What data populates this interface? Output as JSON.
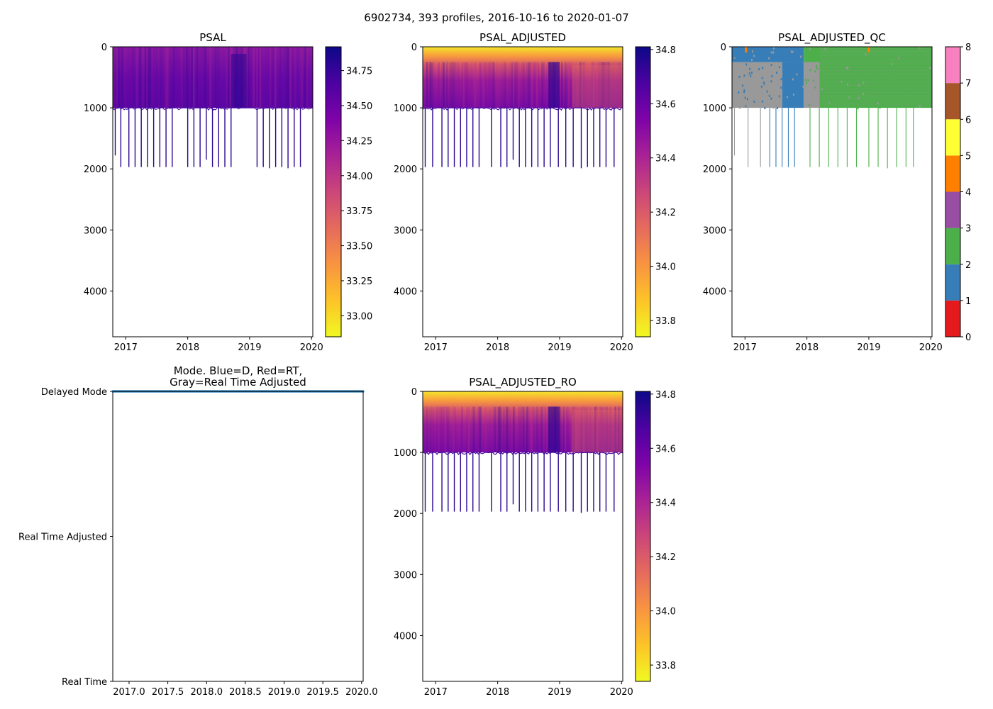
{
  "suptitle": "6902734, 393 profiles, 2016-10-16 to 2020-01-07",
  "chart_data": [
    {
      "id": "psal",
      "type": "heatmap",
      "title": "PSAL",
      "xlabel": "",
      "ylabel": "",
      "xlim": [
        2016.79,
        2020.02
      ],
      "ylim": [
        4750,
        0
      ],
      "x_ticks": [
        {
          "value": 2017,
          "label": "2017"
        },
        {
          "value": 2018,
          "label": "2018"
        },
        {
          "value": 2019,
          "label": "2019"
        },
        {
          "value": 2020,
          "label": "2020"
        }
      ],
      "y_ticks": [
        {
          "value": 0,
          "label": "0"
        },
        {
          "value": 1000,
          "label": "1000"
        },
        {
          "value": 2000,
          "label": "2000"
        },
        {
          "value": 3000,
          "label": "3000"
        },
        {
          "value": 4000,
          "label": "4000"
        }
      ],
      "colormap": "plasma_r",
      "colorbar": {
        "range": [
          32.85,
          34.92
        ],
        "ticks": [
          {
            "value": 33.0,
            "label": "33.00"
          },
          {
            "value": 33.25,
            "label": "33.25"
          },
          {
            "value": 33.5,
            "label": "33.50"
          },
          {
            "value": 33.75,
            "label": "33.75"
          },
          {
            "value": 34.0,
            "label": "34.00"
          },
          {
            "value": 34.25,
            "label": "34.25"
          },
          {
            "value": 34.5,
            "label": "34.50"
          },
          {
            "value": 34.75,
            "label": "34.75"
          }
        ]
      },
      "typical_profile_depth": 1000,
      "deep_profiles": [
        {
          "x": 2016.83,
          "depth": 1780
        },
        {
          "x": 2016.92,
          "depth": 1970
        },
        {
          "x": 2017.05,
          "depth": 1970
        },
        {
          "x": 2017.15,
          "depth": 1970
        },
        {
          "x": 2017.25,
          "depth": 1970
        },
        {
          "x": 2017.35,
          "depth": 1970
        },
        {
          "x": 2017.45,
          "depth": 1970
        },
        {
          "x": 2017.55,
          "depth": 1970
        },
        {
          "x": 2017.65,
          "depth": 1970
        },
        {
          "x": 2017.75,
          "depth": 1970
        },
        {
          "x": 2018.0,
          "depth": 1970
        },
        {
          "x": 2018.1,
          "depth": 1970
        },
        {
          "x": 2018.2,
          "depth": 1970
        },
        {
          "x": 2018.3,
          "depth": 1850
        },
        {
          "x": 2018.4,
          "depth": 1970
        },
        {
          "x": 2018.5,
          "depth": 1970
        },
        {
          "x": 2018.6,
          "depth": 1970
        },
        {
          "x": 2018.7,
          "depth": 1970
        },
        {
          "x": 2019.12,
          "depth": 1970
        },
        {
          "x": 2019.22,
          "depth": 1970
        },
        {
          "x": 2019.32,
          "depth": 1990
        },
        {
          "x": 2019.42,
          "depth": 1970
        },
        {
          "x": 2019.52,
          "depth": 1970
        },
        {
          "x": 2019.62,
          "depth": 1990
        },
        {
          "x": 2019.72,
          "depth": 1970
        },
        {
          "x": 2019.82,
          "depth": 1970
        }
      ]
    },
    {
      "id": "psal_adj",
      "type": "heatmap",
      "title": "PSAL_ADJUSTED",
      "xlabel": "",
      "ylabel": "",
      "xlim": [
        2016.79,
        2020.02
      ],
      "ylim": [
        4750,
        0
      ],
      "x_ticks": [
        {
          "value": 2017,
          "label": "2017"
        },
        {
          "value": 2018,
          "label": "2018"
        },
        {
          "value": 2019,
          "label": "2019"
        },
        {
          "value": 2020,
          "label": "2020"
        }
      ],
      "y_ticks": [
        {
          "value": 0,
          "label": "0"
        },
        {
          "value": 1000,
          "label": "1000"
        },
        {
          "value": 2000,
          "label": "2000"
        },
        {
          "value": 3000,
          "label": "3000"
        },
        {
          "value": 4000,
          "label": "4000"
        }
      ],
      "colormap": "plasma_r",
      "colorbar": {
        "range": [
          33.74,
          34.81
        ],
        "ticks": [
          {
            "value": 33.8,
            "label": "33.8"
          },
          {
            "value": 34.0,
            "label": "34.0"
          },
          {
            "value": 34.2,
            "label": "34.2"
          },
          {
            "value": 34.4,
            "label": "34.4"
          },
          {
            "value": 34.6,
            "label": "34.6"
          },
          {
            "value": 34.8,
            "label": "34.8"
          }
        ]
      },
      "typical_profile_depth": 1000,
      "deep_profiles": [
        {
          "x": 2016.83,
          "depth": 1970
        },
        {
          "x": 2016.95,
          "depth": 1970
        },
        {
          "x": 2017.1,
          "depth": 1970
        },
        {
          "x": 2017.2,
          "depth": 1970
        },
        {
          "x": 2017.3,
          "depth": 1970
        },
        {
          "x": 2017.4,
          "depth": 1970
        },
        {
          "x": 2017.5,
          "depth": 1970
        },
        {
          "x": 2017.6,
          "depth": 1970
        },
        {
          "x": 2017.7,
          "depth": 1970
        },
        {
          "x": 2017.9,
          "depth": 1970
        },
        {
          "x": 2018.05,
          "depth": 1970
        },
        {
          "x": 2018.15,
          "depth": 1970
        },
        {
          "x": 2018.25,
          "depth": 1850
        },
        {
          "x": 2018.35,
          "depth": 1970
        },
        {
          "x": 2018.45,
          "depth": 1970
        },
        {
          "x": 2018.55,
          "depth": 1970
        },
        {
          "x": 2018.65,
          "depth": 1970
        },
        {
          "x": 2018.75,
          "depth": 1970
        },
        {
          "x": 2018.85,
          "depth": 1970
        },
        {
          "x": 2018.98,
          "depth": 1970
        },
        {
          "x": 2019.1,
          "depth": 1970
        },
        {
          "x": 2019.22,
          "depth": 1970
        },
        {
          "x": 2019.35,
          "depth": 1990
        },
        {
          "x": 2019.45,
          "depth": 1970
        },
        {
          "x": 2019.55,
          "depth": 1970
        },
        {
          "x": 2019.65,
          "depth": 1970
        },
        {
          "x": 2019.75,
          "depth": 1970
        },
        {
          "x": 2019.88,
          "depth": 1970
        }
      ]
    },
    {
      "id": "psal_qc",
      "type": "heatmap",
      "title": "PSAL_ADJUSTED_QC",
      "xlabel": "",
      "ylabel": "",
      "xlim": [
        2016.79,
        2020.02
      ],
      "ylim": [
        4750,
        0
      ],
      "x_ticks": [
        {
          "value": 2017,
          "label": "2017"
        },
        {
          "value": 2018,
          "label": "2018"
        },
        {
          "value": 2019,
          "label": "2019"
        },
        {
          "value": 2020,
          "label": "2020"
        }
      ],
      "y_ticks": [
        {
          "value": 0,
          "label": "0"
        },
        {
          "value": 1000,
          "label": "1000"
        },
        {
          "value": 2000,
          "label": "2000"
        },
        {
          "value": 3000,
          "label": "3000"
        },
        {
          "value": 4000,
          "label": "4000"
        }
      ],
      "colorbar": {
        "range": [
          0,
          8
        ],
        "categories": [
          {
            "value": 0,
            "color": "#e41a1c"
          },
          {
            "value": 1,
            "color": "#377eb8"
          },
          {
            "value": 2,
            "color": "#4daf4a"
          },
          {
            "value": 3,
            "color": "#984ea3"
          },
          {
            "value": 4,
            "color": "#ff7f00"
          },
          {
            "value": 5,
            "color": "#ffff33"
          },
          {
            "value": 6,
            "color": "#a65628"
          },
          {
            "value": 7,
            "color": "#f781bf"
          },
          {
            "value": 8,
            "color": "#999999"
          }
        ],
        "ticks": [
          {
            "value": 0,
            "label": "0"
          },
          {
            "value": 1,
            "label": "1"
          },
          {
            "value": 2,
            "label": "2"
          },
          {
            "value": 3,
            "label": "3"
          },
          {
            "value": 4,
            "label": "4"
          },
          {
            "value": 5,
            "label": "5"
          },
          {
            "value": 6,
            "label": "6"
          },
          {
            "value": 7,
            "label": "7"
          },
          {
            "value": 8,
            "label": "8"
          }
        ]
      },
      "typical_profile_depth": 1000,
      "qc_regions": [
        {
          "x0": 2016.79,
          "x1": 2017.95,
          "depth0": 0,
          "depth1": 250,
          "qc": 1
        },
        {
          "x0": 2016.79,
          "x1": 2017.6,
          "depth0": 250,
          "depth1": 1000,
          "qc": 8
        },
        {
          "x0": 2017.6,
          "x1": 2017.95,
          "depth0": 250,
          "depth1": 1000,
          "qc": 1
        },
        {
          "x0": 2017.95,
          "x1": 2018.2,
          "depth0": 250,
          "depth1": 1000,
          "qc": 8
        },
        {
          "x0": 2017.95,
          "x1": 2020.02,
          "depth0": 0,
          "depth1": 250,
          "qc": 2
        },
        {
          "x0": 2018.2,
          "x1": 2020.02,
          "depth0": 250,
          "depth1": 1000,
          "qc": 2
        }
      ],
      "deep_profiles": [
        {
          "x": 2016.83,
          "depth": 1780,
          "qc": 8
        },
        {
          "x": 2017.05,
          "depth": 1970,
          "qc": 8
        },
        {
          "x": 2017.25,
          "depth": 1970,
          "qc": 8
        },
        {
          "x": 2017.4,
          "depth": 1970,
          "qc": 1
        },
        {
          "x": 2017.5,
          "depth": 1970,
          "qc": 1
        },
        {
          "x": 2017.6,
          "depth": 1970,
          "qc": 1
        },
        {
          "x": 2017.7,
          "depth": 1970,
          "qc": 1
        },
        {
          "x": 2017.8,
          "depth": 1970,
          "qc": 1
        },
        {
          "x": 2018.05,
          "depth": 1970,
          "qc": 2
        },
        {
          "x": 2018.2,
          "depth": 1970,
          "qc": 2
        },
        {
          "x": 2018.35,
          "depth": 1970,
          "qc": 2
        },
        {
          "x": 2018.5,
          "depth": 1970,
          "qc": 2
        },
        {
          "x": 2018.65,
          "depth": 1970,
          "qc": 2
        },
        {
          "x": 2018.8,
          "depth": 1970,
          "qc": 2
        },
        {
          "x": 2019.0,
          "depth": 1970,
          "qc": 2
        },
        {
          "x": 2019.15,
          "depth": 1970,
          "qc": 2
        },
        {
          "x": 2019.3,
          "depth": 1990,
          "qc": 2
        },
        {
          "x": 2019.45,
          "depth": 1970,
          "qc": 2
        },
        {
          "x": 2019.6,
          "depth": 1970,
          "qc": 2
        },
        {
          "x": 2019.72,
          "depth": 1970,
          "qc": 2
        }
      ]
    },
    {
      "id": "mode",
      "type": "scatter",
      "title": "Mode. Blue=D, Red=RT,\nGray=Real Time Adjusted",
      "xlabel": "",
      "ylabel": "",
      "xlim": [
        2016.79,
        2020.02
      ],
      "ylim": [
        0,
        2
      ],
      "x_ticks": [
        {
          "value": 2017.0,
          "label": "2017.0"
        },
        {
          "value": 2017.5,
          "label": "2017.5"
        },
        {
          "value": 2018.0,
          "label": "2018.0"
        },
        {
          "value": 2018.5,
          "label": "2018.5"
        },
        {
          "value": 2019.0,
          "label": "2019.0"
        },
        {
          "value": 2019.5,
          "label": "2019.5"
        },
        {
          "value": 2020.0,
          "label": "2020.0"
        }
      ],
      "y_ticks": [
        {
          "value": 2,
          "label": "Delayed Mode"
        },
        {
          "value": 1,
          "label": "Real Time Adjusted"
        },
        {
          "value": 0,
          "label": "Real Time"
        }
      ],
      "series": [
        {
          "name": "D",
          "color": "#1f77b4",
          "x_range": [
            2016.79,
            2020.02
          ],
          "y": 2,
          "count": 393
        }
      ]
    },
    {
      "id": "psal_ro",
      "type": "heatmap",
      "title": "PSAL_ADJUSTED_RO",
      "xlabel": "",
      "ylabel": "",
      "xlim": [
        2016.79,
        2020.02
      ],
      "ylim": [
        4750,
        0
      ],
      "x_ticks": [
        {
          "value": 2017,
          "label": "2017"
        },
        {
          "value": 2018,
          "label": "2018"
        },
        {
          "value": 2019,
          "label": "2019"
        },
        {
          "value": 2020,
          "label": "2020"
        }
      ],
      "y_ticks": [
        {
          "value": 0,
          "label": "0"
        },
        {
          "value": 1000,
          "label": "1000"
        },
        {
          "value": 2000,
          "label": "2000"
        },
        {
          "value": 3000,
          "label": "3000"
        },
        {
          "value": 4000,
          "label": "4000"
        }
      ],
      "colormap": "plasma_r",
      "colorbar": {
        "range": [
          33.74,
          34.81
        ],
        "ticks": [
          {
            "value": 33.8,
            "label": "33.8"
          },
          {
            "value": 34.0,
            "label": "34.0"
          },
          {
            "value": 34.2,
            "label": "34.2"
          },
          {
            "value": 34.4,
            "label": "34.4"
          },
          {
            "value": 34.6,
            "label": "34.6"
          },
          {
            "value": 34.8,
            "label": "34.8"
          }
        ]
      },
      "typical_profile_depth": 1000,
      "deep_profiles": [
        {
          "x": 2016.83,
          "depth": 1970
        },
        {
          "x": 2016.95,
          "depth": 1970
        },
        {
          "x": 2017.1,
          "depth": 1970
        },
        {
          "x": 2017.2,
          "depth": 1970
        },
        {
          "x": 2017.3,
          "depth": 1970
        },
        {
          "x": 2017.4,
          "depth": 1970
        },
        {
          "x": 2017.5,
          "depth": 1970
        },
        {
          "x": 2017.6,
          "depth": 1970
        },
        {
          "x": 2017.7,
          "depth": 1970
        },
        {
          "x": 2017.9,
          "depth": 1970
        },
        {
          "x": 2018.05,
          "depth": 1970
        },
        {
          "x": 2018.15,
          "depth": 1970
        },
        {
          "x": 2018.25,
          "depth": 1850
        },
        {
          "x": 2018.35,
          "depth": 1970
        },
        {
          "x": 2018.45,
          "depth": 1970
        },
        {
          "x": 2018.55,
          "depth": 1970
        },
        {
          "x": 2018.65,
          "depth": 1970
        },
        {
          "x": 2018.75,
          "depth": 1970
        },
        {
          "x": 2018.85,
          "depth": 1970
        },
        {
          "x": 2018.98,
          "depth": 1970
        },
        {
          "x": 2019.1,
          "depth": 1970
        },
        {
          "x": 2019.22,
          "depth": 1970
        },
        {
          "x": 2019.35,
          "depth": 1990
        },
        {
          "x": 2019.45,
          "depth": 1970
        },
        {
          "x": 2019.55,
          "depth": 1970
        },
        {
          "x": 2019.65,
          "depth": 1970
        },
        {
          "x": 2019.75,
          "depth": 1970
        },
        {
          "x": 2019.88,
          "depth": 1970
        }
      ]
    }
  ]
}
